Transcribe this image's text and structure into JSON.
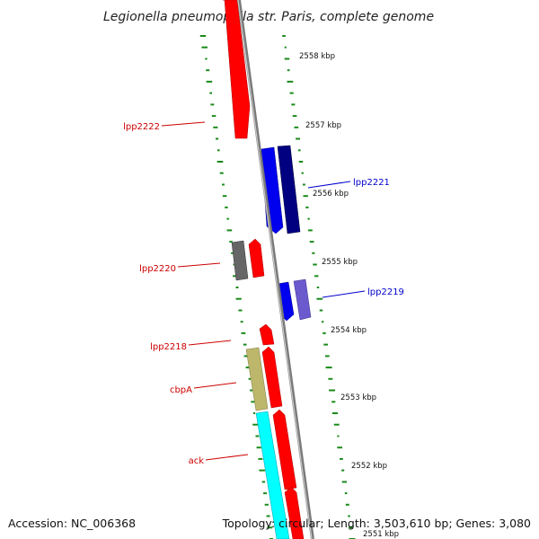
{
  "title": "Legionella pneumophila str. Paris, complete genome",
  "accession": "Accession: NC_006368",
  "summary": "Topology: circular; Length: 3,503,610 bp; Genes: 3,080",
  "colors": {
    "forward": "#ff0000",
    "reverse_blue": "#0000ee",
    "reverse_navy": "#000080",
    "slate": "#6a5acd",
    "gray": "#666666",
    "olive": "#bdb76b",
    "cyan": "#00ffff",
    "backbone": "#888888",
    "tick_green": "#1a8a1a",
    "label_red": "#cc0000",
    "label_blue": "#0000cc"
  },
  "scale_ticks": [
    "2558 kbp",
    "2557 kbp",
    "2556 kbp",
    "2555 kbp",
    "2554 kbp",
    "2553 kbp",
    "2552 kbp",
    "2551 kbp"
  ],
  "gene_labels": [
    {
      "name": "lpp2222",
      "side": "left",
      "color": "red"
    },
    {
      "name": "lpp2221",
      "side": "right",
      "color": "blue"
    },
    {
      "name": "lpp2220",
      "side": "left",
      "color": "red"
    },
    {
      "name": "lpp2219",
      "side": "right",
      "color": "blue"
    },
    {
      "name": "lpp2218",
      "side": "left",
      "color": "red"
    },
    {
      "name": "cbpA",
      "side": "left",
      "color": "red"
    },
    {
      "name": "ack",
      "side": "left",
      "color": "red"
    }
  ]
}
